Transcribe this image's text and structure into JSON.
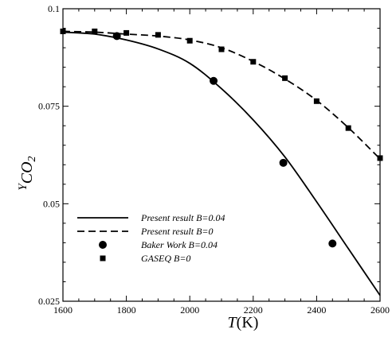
{
  "chart_data": {
    "type": "line",
    "title": "",
    "xlabel": {
      "italic_part": "T",
      "plain_part": "(K)"
    },
    "ylabel": {
      "base": "Y",
      "subscript": "CO",
      "sub_subscript": "2"
    },
    "xlim": [
      1600,
      2600
    ],
    "ylim": [
      0.025,
      0.1
    ],
    "x_ticks": [
      1600,
      1800,
      2000,
      2200,
      2400,
      2600
    ],
    "x_tick_labels": [
      "1600",
      "1800",
      "2000",
      "2200",
      "2400",
      "2600"
    ],
    "y_ticks": [
      0.025,
      0.05,
      0.075,
      0.1
    ],
    "y_tick_labels": [
      "0.025",
      "0.05",
      "0.075",
      "0.1"
    ],
    "x_minor_step": 50,
    "y_minor_step": 0.005,
    "grid": false,
    "legend_position": "bottom-left",
    "series": [
      {
        "name": "Present result B=0.04",
        "style": "solid-line",
        "x": [
          1600,
          1700,
          1800,
          1900,
          2000,
          2100,
          2200,
          2300,
          2400,
          2500,
          2600
        ],
        "y": [
          0.094,
          0.0935,
          0.092,
          0.0897,
          0.086,
          0.0795,
          0.0715,
          0.062,
          0.0505,
          0.0385,
          0.0265
        ]
      },
      {
        "name": "Present result B=0",
        "style": "dashed-line",
        "x": [
          1600,
          1700,
          1800,
          1900,
          2000,
          2100,
          2200,
          2300,
          2400,
          2500,
          2600
        ],
        "y": [
          0.0942,
          0.094,
          0.0935,
          0.093,
          0.092,
          0.09,
          0.0865,
          0.082,
          0.0765,
          0.0695,
          0.0615
        ]
      },
      {
        "name": "Baker Work B=0.04",
        "style": "circle-marker",
        "x": [
          1770,
          2075,
          2295,
          2450
        ],
        "y": [
          0.093,
          0.0815,
          0.0605,
          0.0398
        ]
      },
      {
        "name": "GASEQ B=0",
        "style": "square-marker",
        "x": [
          1600,
          1700,
          1800,
          1900,
          2000,
          2100,
          2200,
          2300,
          2400,
          2500,
          2600
        ],
        "y": [
          0.0942,
          0.0942,
          0.0938,
          0.0933,
          0.0918,
          0.0896,
          0.0864,
          0.0822,
          0.0763,
          0.0694,
          0.0617
        ]
      }
    ]
  }
}
